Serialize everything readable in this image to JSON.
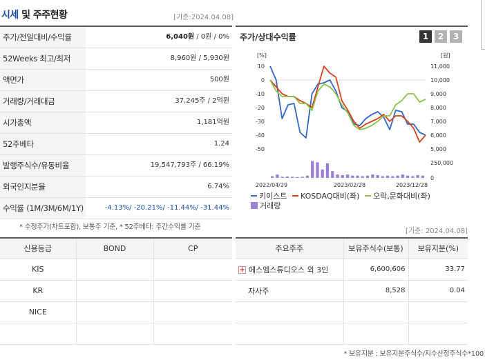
{
  "header": {
    "title_accent": "시세",
    "title_rest": " 및 주주현황",
    "date": "[기준:2024.04.08]"
  },
  "info_rows": [
    {
      "label": "주가/전일대비/수익률",
      "value_bold": "6,040원",
      "value": " / 0원 / 0%"
    },
    {
      "label": "52Weeks 최고/최저",
      "value": "8,960원 / 5,930원"
    },
    {
      "label": "액면가",
      "value": "500원"
    },
    {
      "label": "거래량/거래대금",
      "value": "37,245주 / 2억원"
    },
    {
      "label": "시가총액",
      "value": "1,181억원"
    },
    {
      "label": "52주베타",
      "value": "1.24"
    },
    {
      "label": "발행주식수/유동비율",
      "value": "19,547,793주 / 66.19%"
    },
    {
      "label": "외국인지분율",
      "value": "6.74%"
    },
    {
      "label": "수익률 (1M/3M/6M/1Y)",
      "value": "-4.13%/ -20.21%/ -11.44%/ -31.44%"
    }
  ],
  "note": "* 수정주가(차트포함), 보통주 기준, * 52주베타: 주간수익률 기준",
  "chart_panel": {
    "title": "주가/상대수익률",
    "tabs": [
      "1",
      "2",
      "3"
    ],
    "active_tab": "1",
    "date": "[기준: 2024.04.08]"
  },
  "chart_data": {
    "type": "line",
    "left_unit": "[%]",
    "right_unit": "[원]",
    "left_ticks": [
      "10",
      "0",
      "-10",
      "-20",
      "-30",
      "-40",
      "-50"
    ],
    "left_range": [
      -50,
      10
    ],
    "right_ticks": [
      "11,000",
      "10,000",
      "9,000",
      "8,000",
      "7,000",
      "6,000",
      "5,000"
    ],
    "right_range": [
      5000,
      11000
    ],
    "volume_tick": "250,000",
    "volume_zero": "0",
    "x_labels": [
      "2022/04/29",
      "2023/02/28",
      "2023/12/28"
    ],
    "series": [
      {
        "name": "키이스트",
        "color": "#2f66c9",
        "values": [
          10,
          0,
          -28,
          -18,
          -17,
          -38,
          -42,
          -10,
          -3,
          -2,
          0,
          -8,
          -20,
          -23,
          -32,
          -33,
          -28,
          -25,
          -23,
          -27,
          -36,
          -22,
          -23,
          -32,
          -32,
          -38,
          -40
        ]
      },
      {
        "name": "KOSDAQ대비(좌)",
        "color": "#d9411e",
        "values": [
          0,
          -5,
          -10,
          -12,
          -12,
          -15,
          -17,
          -20,
          -5,
          10,
          5,
          2,
          -15,
          -22,
          -30,
          -35,
          -32,
          -30,
          -28,
          -25,
          -30,
          -26,
          -26,
          -30,
          -35,
          -45,
          -40
        ]
      },
      {
        "name": "오락,문화대비(좌)",
        "color": "#8bc34a",
        "values": [
          0,
          -8,
          -12,
          -12,
          -12,
          -17,
          -17,
          -22,
          -8,
          -3,
          -5,
          -10,
          -18,
          -24,
          -33,
          -36,
          -35,
          -33,
          -30,
          -26,
          -26,
          -18,
          -15,
          -10,
          -10,
          -16,
          -14
        ]
      }
    ],
    "volume_name": "거래량",
    "volume_color": "#9b80d6",
    "volume": [
      30000,
      60000,
      20000,
      25000,
      20000,
      15000,
      20000,
      40000,
      300000,
      280000,
      150000,
      260000,
      120000,
      60000,
      50000,
      60000,
      40000,
      40000,
      30000,
      40000,
      60000,
      50000,
      30000,
      40000,
      30000,
      40000,
      60000,
      40000,
      30000,
      50000,
      40000
    ]
  },
  "credit": {
    "headers": [
      "신용등급",
      "BOND",
      "CP"
    ],
    "rows": [
      [
        "KIS",
        "",
        ""
      ],
      [
        "KR",
        "",
        ""
      ],
      [
        "NICE",
        "",
        ""
      ],
      [
        "",
        "",
        ""
      ]
    ]
  },
  "holders": {
    "headers": [
      "주요주주",
      "보유주식수(보통)",
      "보유지분(%)"
    ],
    "rows": [
      {
        "name": "에스엠스튜디오스 외 3인",
        "expand": "+",
        "shares": "6,600,606",
        "pct": "33.77"
      },
      {
        "name": "자사주",
        "expand": "",
        "shares": "8,528",
        "pct": "0.04"
      },
      {
        "name": "",
        "expand": "",
        "shares": "",
        "pct": ""
      },
      {
        "name": "",
        "expand": "",
        "shares": "",
        "pct": ""
      }
    ]
  },
  "footer_note": "* 보유지분 : 보유지분주식수/지수산정주식수*100"
}
